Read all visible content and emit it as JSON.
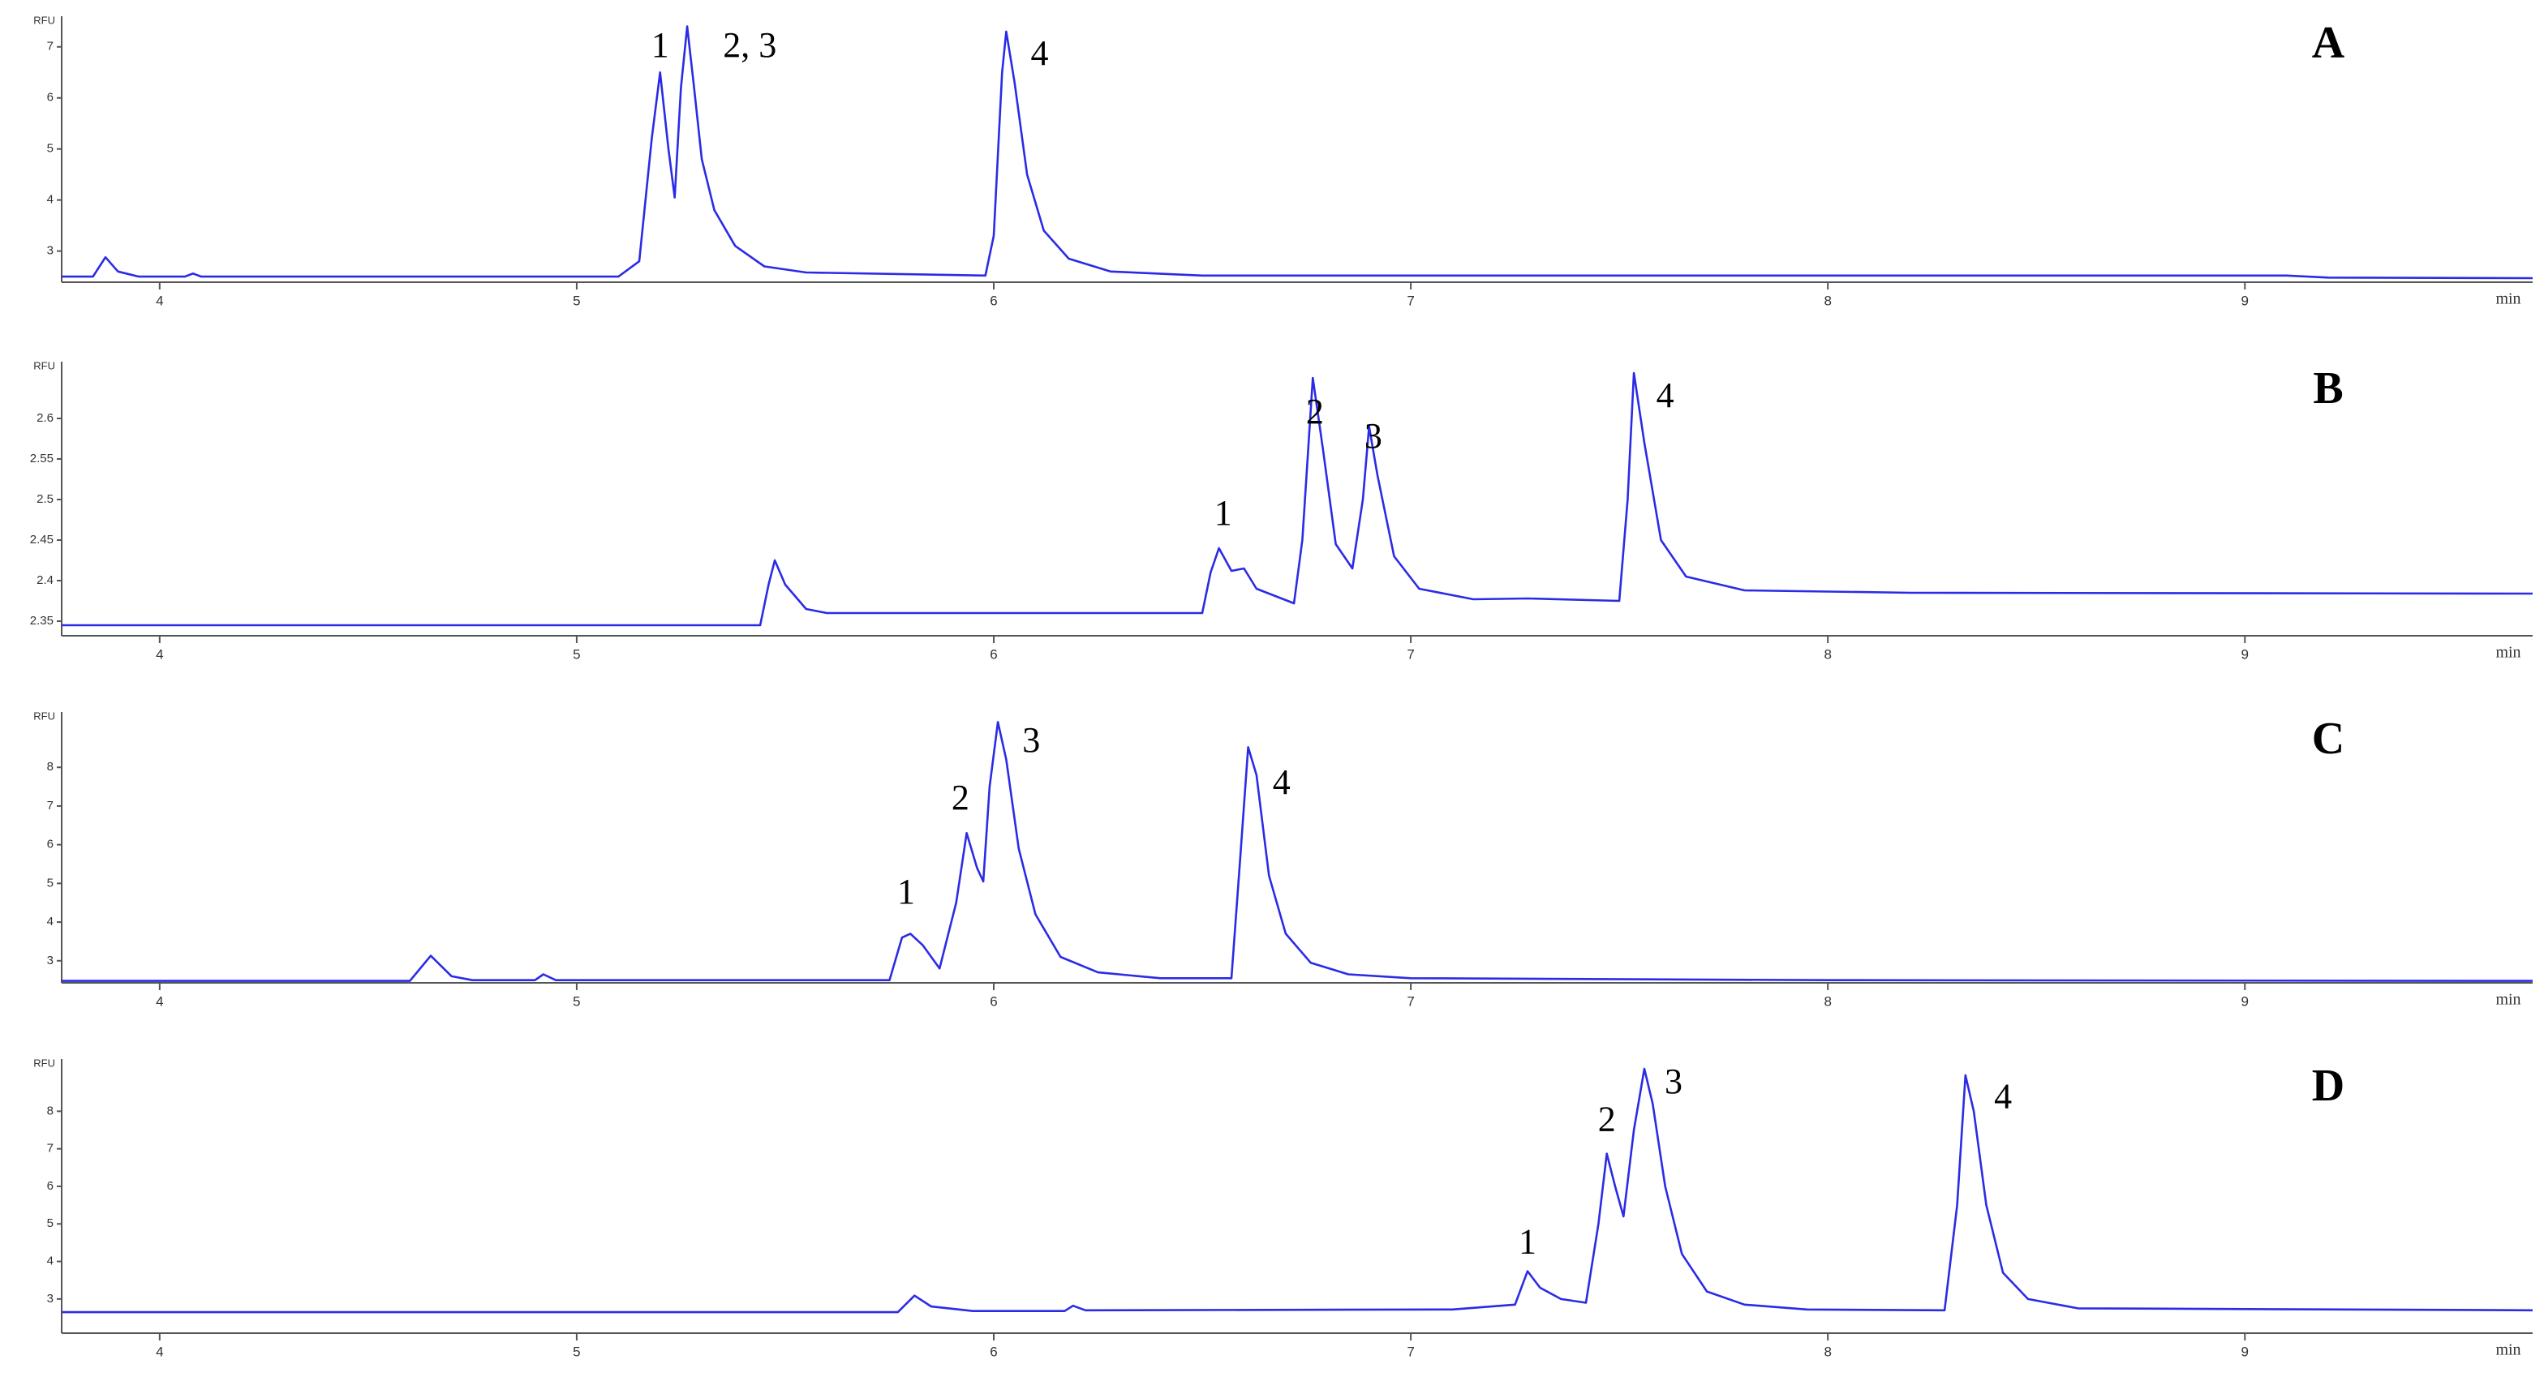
{
  "chart_data": [
    {
      "type": "line",
      "title": "A",
      "x_label": "min",
      "y_label": "RFU",
      "xlim": [
        3.765,
        9.69
      ],
      "xticks": [
        4,
        5,
        6,
        7,
        8,
        9
      ],
      "ylim": [
        2.39,
        7.6
      ],
      "yticks": [
        3,
        4,
        5,
        6,
        7
      ],
      "x": [
        3.765,
        3.84,
        3.87,
        3.9,
        3.95,
        4.06,
        4.08,
        4.1,
        5.1,
        5.15,
        5.18,
        5.2,
        5.22,
        5.235,
        5.25,
        5.265,
        5.28,
        5.3,
        5.33,
        5.38,
        5.45,
        5.55,
        5.98,
        6.0,
        6.02,
        6.03,
        6.05,
        6.08,
        6.12,
        6.18,
        6.28,
        6.5,
        9.1,
        9.2,
        9.69
      ],
      "series": [
        {
          "color": "#2b2be6",
          "values": [
            2.5,
            2.5,
            2.88,
            2.6,
            2.5,
            2.5,
            2.56,
            2.5,
            2.5,
            2.8,
            5.2,
            6.5,
            5.0,
            4.05,
            6.2,
            7.4,
            6.3,
            4.8,
            3.8,
            3.1,
            2.7,
            2.58,
            2.52,
            3.3,
            6.5,
            7.3,
            6.3,
            4.5,
            3.4,
            2.85,
            2.6,
            2.52,
            2.52,
            2.48,
            2.47
          ]
        }
      ],
      "annotations": [
        {
          "text": "1",
          "x": 5.2,
          "y": 6.97
        },
        {
          "text": "2, 3",
          "x": 5.415,
          "y": 6.97
        },
        {
          "text": "4",
          "x": 6.11,
          "y": 6.81
        }
      ]
    },
    {
      "type": "line",
      "title": "B",
      "x_label": "min",
      "y_label": "RFU",
      "xlim": [
        3.765,
        9.69
      ],
      "xticks": [
        4,
        5,
        6,
        7,
        8,
        9
      ],
      "ylim": [
        2.332,
        2.67
      ],
      "yticks": [
        2.35,
        2.4,
        2.45,
        2.5,
        2.55,
        2.6
      ],
      "x": [
        3.765,
        5.44,
        5.46,
        5.475,
        5.5,
        5.55,
        5.6,
        6.5,
        6.52,
        6.54,
        6.57,
        6.6,
        6.63,
        6.72,
        6.74,
        6.765,
        6.79,
        6.82,
        6.86,
        6.885,
        6.9,
        6.92,
        6.96,
        7.02,
        7.15,
        7.28,
        7.5,
        7.52,
        7.535,
        7.56,
        7.6,
        7.66,
        7.8,
        8.2,
        9.69
      ],
      "series": [
        {
          "color": "#2b2be6",
          "values": [
            2.345,
            2.345,
            2.395,
            2.425,
            2.395,
            2.365,
            2.36,
            2.36,
            2.41,
            2.44,
            2.412,
            2.415,
            2.39,
            2.372,
            2.45,
            2.65,
            2.56,
            2.445,
            2.415,
            2.5,
            2.59,
            2.53,
            2.43,
            2.39,
            2.377,
            2.378,
            2.375,
            2.5,
            2.656,
            2.57,
            2.45,
            2.405,
            2.388,
            2.385,
            2.384
          ]
        }
      ],
      "annotations": [
        {
          "text": "1",
          "x": 6.55,
          "y": 2.479
        },
        {
          "text": "2",
          "x": 6.77,
          "y": 2.604
        },
        {
          "text": "3",
          "x": 6.91,
          "y": 2.574
        },
        {
          "text": "4",
          "x": 7.61,
          "y": 2.624
        }
      ]
    },
    {
      "type": "line",
      "title": "C",
      "x_label": "min",
      "y_label": "RFU",
      "xlim": [
        3.765,
        9.69
      ],
      "xticks": [
        4,
        5,
        6,
        7,
        8,
        9
      ],
      "ylim": [
        2.43,
        9.43
      ],
      "yticks": [
        3,
        4,
        5,
        6,
        7,
        8
      ],
      "x": [
        3.765,
        4.6,
        4.65,
        4.7,
        4.75,
        4.9,
        4.92,
        4.95,
        5.75,
        5.78,
        5.8,
        5.83,
        5.87,
        5.91,
        5.935,
        5.96,
        5.975,
        5.99,
        6.01,
        6.03,
        6.06,
        6.1,
        6.16,
        6.25,
        6.4,
        6.57,
        6.59,
        6.61,
        6.63,
        6.66,
        6.7,
        6.76,
        6.85,
        7.0,
        8.0,
        9.69
      ],
      "series": [
        {
          "color": "#2b2be6",
          "values": [
            2.48,
            2.48,
            3.13,
            2.6,
            2.5,
            2.5,
            2.65,
            2.5,
            2.5,
            3.6,
            3.7,
            3.4,
            2.8,
            4.5,
            6.3,
            5.4,
            5.05,
            7.5,
            9.17,
            8.2,
            5.9,
            4.2,
            3.1,
            2.7,
            2.55,
            2.55,
            5.5,
            8.52,
            7.8,
            5.2,
            3.7,
            2.95,
            2.65,
            2.55,
            2.5,
            2.48
          ]
        }
      ],
      "annotations": [
        {
          "text": "1",
          "x": 5.79,
          "y": 4.7
        },
        {
          "text": "2",
          "x": 5.92,
          "y": 7.13
        },
        {
          "text": "3",
          "x": 6.09,
          "y": 8.61
        },
        {
          "text": "4",
          "x": 6.69,
          "y": 7.52
        }
      ]
    },
    {
      "type": "line",
      "title": "D",
      "x_label": "min",
      "y_label": "RFU",
      "xlim": [
        3.765,
        9.69
      ],
      "xticks": [
        4,
        5,
        6,
        7,
        8,
        9
      ],
      "ylim": [
        2.09,
        9.39
      ],
      "yticks": [
        3,
        4,
        5,
        6,
        7,
        8
      ],
      "x": [
        3.765,
        5.77,
        5.81,
        5.85,
        5.95,
        6.17,
        6.19,
        6.22,
        7.1,
        7.25,
        7.28,
        7.31,
        7.36,
        7.42,
        7.45,
        7.47,
        7.49,
        7.51,
        7.535,
        7.56,
        7.58,
        7.61,
        7.65,
        7.71,
        7.8,
        7.95,
        8.28,
        8.31,
        8.33,
        8.35,
        8.38,
        8.42,
        8.48,
        8.6,
        9.69
      ],
      "series": [
        {
          "color": "#2b2be6",
          "values": [
            2.65,
            2.65,
            3.09,
            2.8,
            2.68,
            2.68,
            2.82,
            2.7,
            2.72,
            2.85,
            3.74,
            3.3,
            3.0,
            2.9,
            5.0,
            6.87,
            6.0,
            5.2,
            7.5,
            9.13,
            8.2,
            6.0,
            4.2,
            3.2,
            2.85,
            2.72,
            2.7,
            5.5,
            8.96,
            8.0,
            5.5,
            3.7,
            3.0,
            2.75,
            2.7
          ]
        }
      ],
      "annotations": [
        {
          "text": "1",
          "x": 7.28,
          "y": 4.43
        },
        {
          "text": "2",
          "x": 7.47,
          "y": 7.7
        },
        {
          "text": "3",
          "x": 7.63,
          "y": 8.7
        },
        {
          "text": "4",
          "x": 8.42,
          "y": 8.3
        }
      ]
    }
  ]
}
